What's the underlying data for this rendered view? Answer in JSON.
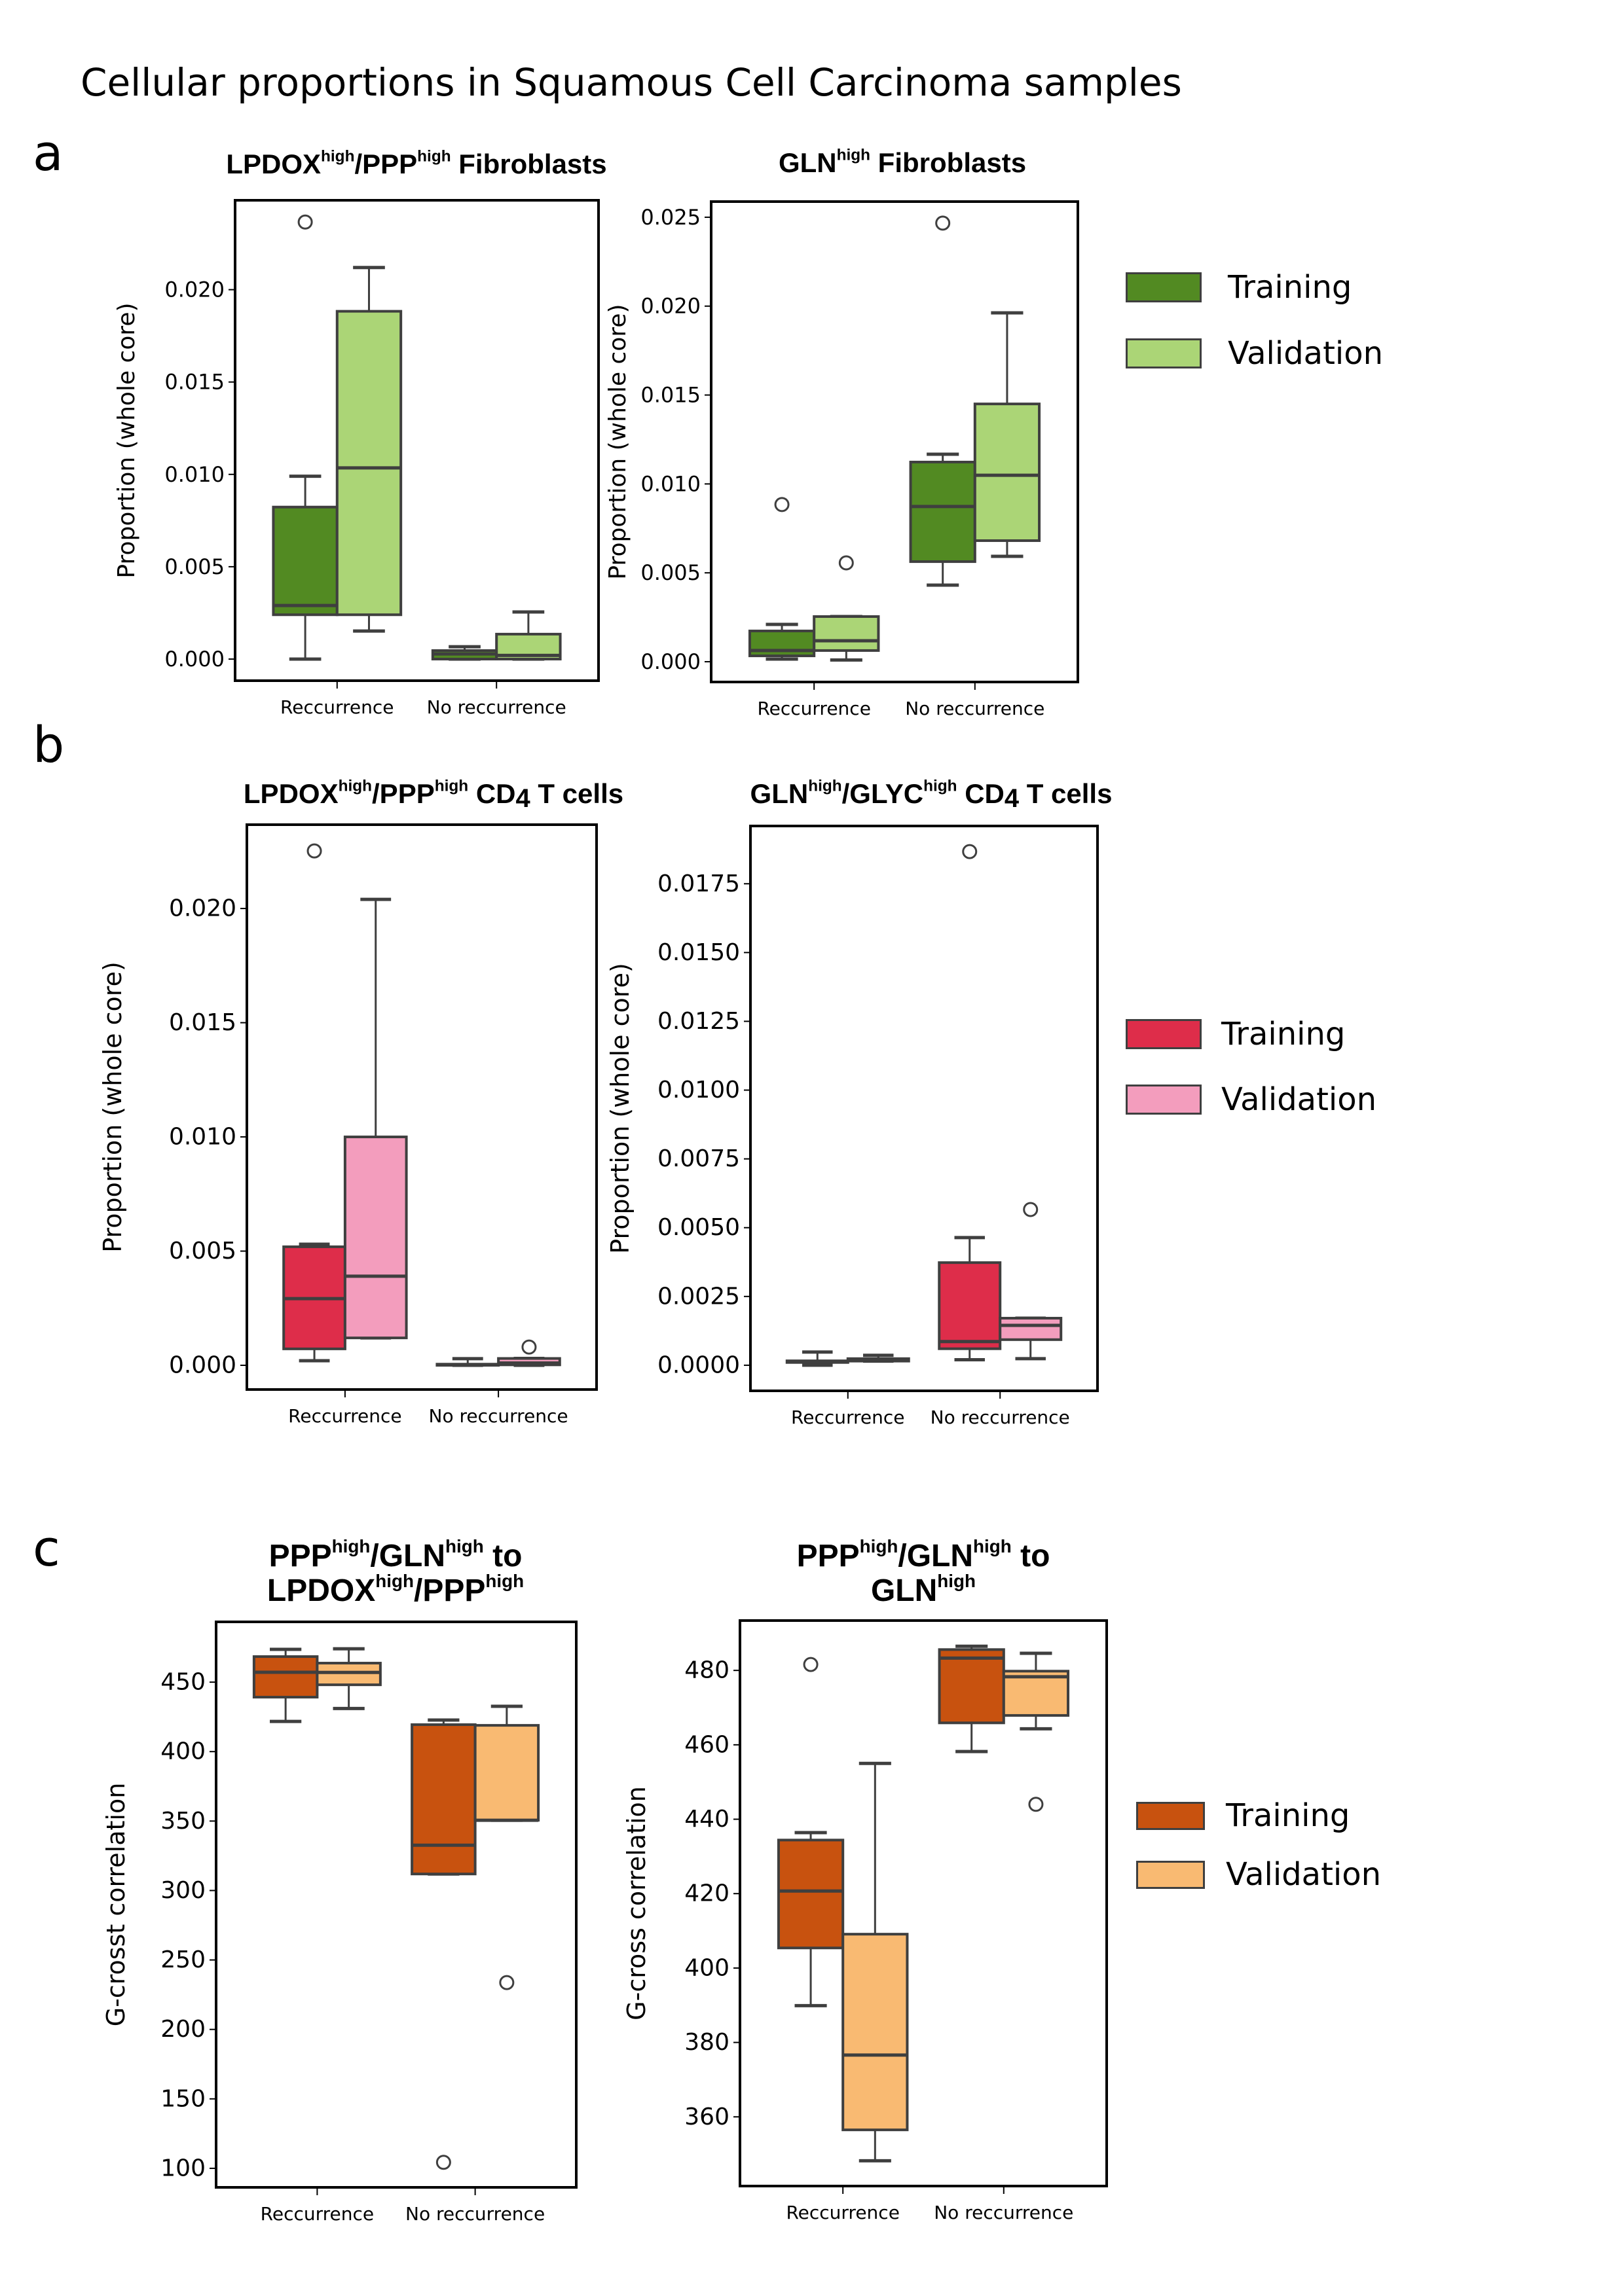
{
  "figure": {
    "title": "Cellular proportions in Squamous Cell Carcinoma samples",
    "panels": [
      {
        "label": "a",
        "legend": [
          {
            "label": "Training",
            "color": "#528a22"
          },
          {
            "label": "Validation",
            "color": "#abd576"
          }
        ]
      },
      {
        "label": "b",
        "legend": [
          {
            "label": "Training",
            "color": "#de2d4a"
          },
          {
            "label": "Validation",
            "color": "#f39dbd"
          }
        ]
      },
      {
        "label": "c",
        "legend": [
          {
            "label": "Training",
            "color": "#c8520f"
          },
          {
            "label": "Validation",
            "color": "#f9ba72"
          }
        ]
      }
    ]
  },
  "chart_data": [
    {
      "type": "box",
      "panel": "a",
      "title_parts": [
        [
          "LPDOX",
          "high"
        ],
        [
          "/PPP",
          "high"
        ],
        [
          " Fibroblasts",
          ""
        ]
      ],
      "title": "LPDOX^high/PPP^high Fibroblasts",
      "xlabel": "",
      "ylabel": "Proportion (whole core)",
      "categories": [
        "Reccurrence",
        "No reccurrence"
      ],
      "ylim": [
        -0.00117,
        0.02484
      ],
      "yticks": [
        0.0,
        0.005,
        0.01,
        0.015,
        0.02
      ],
      "ytick_labels": [
        "0.000",
        "0.005",
        "0.010",
        "0.015",
        "0.020"
      ],
      "series": [
        {
          "name": "Training",
          "color": "#528a22",
          "boxes": [
            {
              "q1": 0.0024,
              "median": 0.0029,
              "q3": 0.00823,
              "whisker_low": 0.0,
              "whisker_high": 0.0099,
              "outliers": [
                0.02366
              ]
            },
            {
              "q1": 0.0,
              "median": 0.00028,
              "q3": 0.00046,
              "whisker_low": 0.0,
              "whisker_high": 0.00067,
              "outliers": []
            }
          ]
        },
        {
          "name": "Validation",
          "color": "#abd576",
          "boxes": [
            {
              "q1": 0.0024,
              "median": 0.01035,
              "q3": 0.01883,
              "whisker_low": 0.00152,
              "whisker_high": 0.0212,
              "outliers": []
            },
            {
              "q1": 0.0,
              "median": 0.0002,
              "q3": 0.00135,
              "whisker_low": 0.0,
              "whisker_high": 0.00255,
              "outliers": []
            }
          ]
        }
      ]
    },
    {
      "type": "box",
      "panel": "a",
      "title_parts": [
        [
          "GLN",
          "high"
        ],
        [
          " Fibroblasts",
          ""
        ]
      ],
      "title": "GLN^high Fibroblasts",
      "xlabel": "",
      "ylabel": "Proportion (whole core)",
      "categories": [
        "Reccurrence",
        "No reccurrence"
      ],
      "ylim": [
        -0.00114,
        0.02588
      ],
      "yticks": [
        0.0,
        0.005,
        0.01,
        0.015,
        0.02,
        0.025
      ],
      "ytick_labels": [
        "0.000",
        "0.005",
        "0.010",
        "0.015",
        "0.020",
        "0.025"
      ],
      "series": [
        {
          "name": "Training",
          "color": "#528a22",
          "boxes": [
            {
              "q1": 0.00033,
              "median": 0.00063,
              "q3": 0.00173,
              "whisker_low": 0.00015,
              "whisker_high": 0.0021,
              "outliers": [
                0.00884
              ]
            },
            {
              "q1": 0.00563,
              "median": 0.00873,
              "q3": 0.01123,
              "whisker_low": 0.00431,
              "whisker_high": 0.01167,
              "outliers": [
                0.02467
              ]
            }
          ]
        },
        {
          "name": "Validation",
          "color": "#abd576",
          "boxes": [
            {
              "q1": 0.00063,
              "median": 0.00118,
              "q3": 0.00254,
              "whisker_low": 0.0001,
              "whisker_high": 0.00254,
              "outliers": [
                0.00556
              ]
            },
            {
              "q1": 0.00681,
              "median": 0.01049,
              "q3": 0.0145,
              "whisker_low": 0.00593,
              "whisker_high": 0.01962,
              "outliers": []
            }
          ]
        }
      ]
    },
    {
      "type": "box",
      "panel": "b",
      "title_parts": [
        [
          "LPDOX",
          "high"
        ],
        [
          "/PPP",
          "high"
        ],
        [
          " CD",
          ""
        ],
        [
          "4",
          "sub"
        ],
        [
          " T cells",
          ""
        ]
      ],
      "title": "LPDOX^high/PPP^high CD4 T cells",
      "xlabel": "",
      "ylabel": "Proportion (whole core)",
      "categories": [
        "Reccurrence",
        "No reccurrence"
      ],
      "ylim": [
        -0.00106,
        0.02367
      ],
      "yticks": [
        0.0,
        0.005,
        0.01,
        0.015,
        0.02
      ],
      "ytick_labels": [
        "0.000",
        "0.005",
        "0.010",
        "0.015",
        "0.020"
      ],
      "series": [
        {
          "name": "Training",
          "color": "#de2d4a",
          "boxes": [
            {
              "q1": 0.00072,
              "median": 0.00292,
              "q3": 0.00519,
              "whisker_low": 0.0002,
              "whisker_high": 0.0053,
              "outliers": [
                0.02252
              ]
            },
            {
              "q1": 0.0,
              "median": 3e-05,
              "q3": 5e-05,
              "whisker_low": 0.0,
              "whisker_high": 0.00029,
              "outliers": []
            }
          ]
        },
        {
          "name": "Validation",
          "color": "#f39dbd",
          "boxes": [
            {
              "q1": 0.0012,
              "median": 0.0039,
              "q3": 0.01,
              "whisker_low": 0.0012,
              "whisker_high": 0.0204,
              "outliers": []
            },
            {
              "q1": 2e-05,
              "median": 0.0001,
              "q3": 0.0003,
              "whisker_low": 0.0,
              "whisker_high": 0.0003,
              "outliers": [
                0.0008
              ]
            }
          ]
        }
      ]
    },
    {
      "type": "box",
      "panel": "b",
      "title_parts": [
        [
          "GLN",
          "high"
        ],
        [
          "/GLYC",
          "high"
        ],
        [
          " CD",
          ""
        ],
        [
          "4",
          "sub"
        ],
        [
          " T cells",
          ""
        ]
      ],
      "title": "GLN^high/GLYC^high CD4 T cells",
      "xlabel": "",
      "ylabel": "Proportion (whole core)",
      "categories": [
        "Reccurrence",
        "No reccurrence"
      ],
      "ylim": [
        -0.00093,
        0.0196
      ],
      "yticks": [
        0.0,
        0.0025,
        0.005,
        0.0075,
        0.01,
        0.0125,
        0.015,
        0.0175
      ],
      "ytick_labels": [
        "0.0000",
        "0.0025",
        "0.0050",
        "0.0075",
        "0.0100",
        "0.0125",
        "0.0150",
        "0.0175"
      ],
      "series": [
        {
          "name": "Training",
          "color": "#de2d4a",
          "boxes": [
            {
              "q1": 0.0001,
              "median": 0.00012,
              "q3": 0.00016,
              "whisker_low": 0.0,
              "whisker_high": 0.00048,
              "outliers": []
            },
            {
              "q1": 0.0006,
              "median": 0.00086,
              "q3": 0.00373,
              "whisker_low": 0.0002,
              "whisker_high": 0.00464,
              "outliers": [
                0.01867
              ]
            }
          ]
        },
        {
          "name": "Validation",
          "color": "#f39dbd",
          "boxes": [
            {
              "q1": 0.00015,
              "median": 0.0002,
              "q3": 0.00024,
              "whisker_low": 0.00015,
              "whisker_high": 0.00036,
              "outliers": []
            },
            {
              "q1": 0.00093,
              "median": 0.00145,
              "q3": 0.00171,
              "whisker_low": 0.00024,
              "whisker_high": 0.00171,
              "outliers": [
                0.00566
              ]
            }
          ]
        }
      ]
    },
    {
      "type": "box",
      "panel": "c",
      "title_lines": [
        [
          [
            "PPP",
            "high"
          ],
          [
            "/GLN",
            "high"
          ],
          [
            " to",
            ""
          ]
        ],
        [
          [
            "LPDOX",
            "high"
          ],
          [
            "/PPP",
            "high"
          ]
        ]
      ],
      "title": "PPP^high/GLN^high to LPDOX^high/PPP^high",
      "xlabel": "",
      "ylabel": "G-crosst correlation",
      "categories": [
        "Reccurrence",
        "No reccurrence"
      ],
      "ylim": [
        86.3,
        493.4
      ],
      "yticks": [
        100,
        150,
        200,
        250,
        300,
        350,
        400,
        450
      ],
      "ytick_labels": [
        "100",
        "150",
        "200",
        "250",
        "300",
        "350",
        "400",
        "450"
      ],
      "series": [
        {
          "name": "Training",
          "color": "#c8520f",
          "boxes": [
            {
              "q1": 439.2,
              "median": 457.1,
              "q3": 468.4,
              "whisker_low": 421.7,
              "whisker_high": 473.6,
              "outliers": []
            },
            {
              "q1": 311.9,
              "median": 332.6,
              "q3": 419.4,
              "whisker_low": 311.9,
              "whisker_high": 422.7,
              "outliers": [
                104.3
              ]
            }
          ]
        },
        {
          "name": "Validation",
          "color": "#f9ba72",
          "boxes": [
            {
              "q1": 448.1,
              "median": 457.0,
              "q3": 463.7,
              "whisker_low": 431.0,
              "whisker_high": 474.0,
              "outliers": []
            },
            {
              "q1": 350.6,
              "median": 350.6,
              "q3": 418.9,
              "whisker_low": 350.6,
              "whisker_high": 432.6,
              "outliers": [
                233.7
              ]
            }
          ]
        }
      ]
    },
    {
      "type": "box",
      "panel": "c",
      "title_lines": [
        [
          [
            "PPP",
            "high"
          ],
          [
            "/GLN",
            "high"
          ],
          [
            " to",
            ""
          ]
        ],
        [
          [
            "GLN",
            "high"
          ]
        ]
      ],
      "title": "PPP^high/GLN^high to GLN^high",
      "xlabel": "",
      "ylabel": "G-cross correlation",
      "categories": [
        "Reccurrence",
        "No reccurrence"
      ],
      "ylim": [
        341.4,
        493.4
      ],
      "yticks": [
        360,
        380,
        400,
        420,
        440,
        460,
        480
      ],
      "ytick_labels": [
        "360",
        "380",
        "400",
        "420",
        "440",
        "460",
        "480"
      ],
      "series": [
        {
          "name": "Training",
          "color": "#c8520f",
          "boxes": [
            {
              "q1": 405.4,
              "median": 420.7,
              "q3": 434.4,
              "whisker_low": 389.9,
              "whisker_high": 436.4,
              "outliers": [
                481.6
              ]
            },
            {
              "q1": 465.9,
              "median": 483.3,
              "q3": 485.6,
              "whisker_low": 458.2,
              "whisker_high": 486.5,
              "outliers": []
            }
          ]
        },
        {
          "name": "Validation",
          "color": "#f9ba72",
          "boxes": [
            {
              "q1": 356.5,
              "median": 376.6,
              "q3": 409.1,
              "whisker_low": 348.2,
              "whisker_high": 455.0,
              "outliers": []
            },
            {
              "q1": 467.9,
              "median": 478.3,
              "q3": 479.8,
              "whisker_low": 464.3,
              "whisker_high": 484.6,
              "outliers": [
                444.0
              ]
            }
          ]
        }
      ]
    }
  ]
}
